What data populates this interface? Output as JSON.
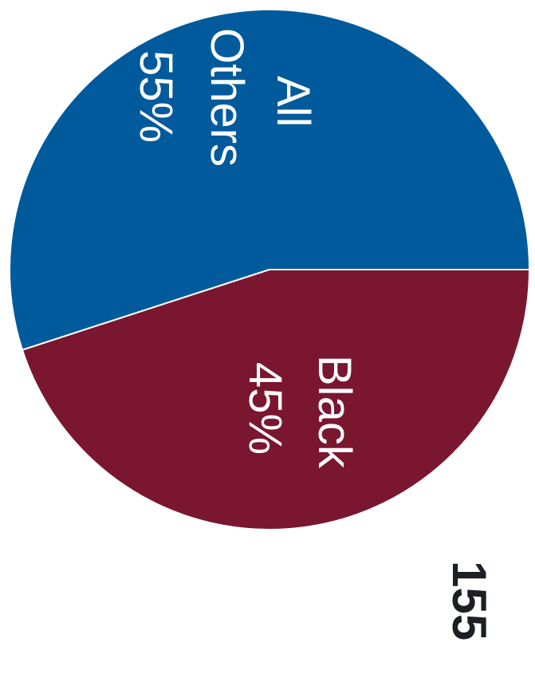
{
  "chart_data": {
    "type": "pie",
    "slices": [
      {
        "label_line1": "All",
        "label_line2": "Others",
        "percent_label": "55%",
        "value": 55,
        "color": "#005a9c"
      },
      {
        "label_line1": "Black",
        "label_line2": "",
        "percent_label": "45%",
        "value": 45,
        "color": "#7b1630"
      }
    ]
  },
  "page": {
    "number": "155"
  },
  "colors": {
    "others": "#005a9c",
    "black": "#7b1630",
    "label_text": "#ffffff",
    "page_number": "#1c1f24"
  }
}
